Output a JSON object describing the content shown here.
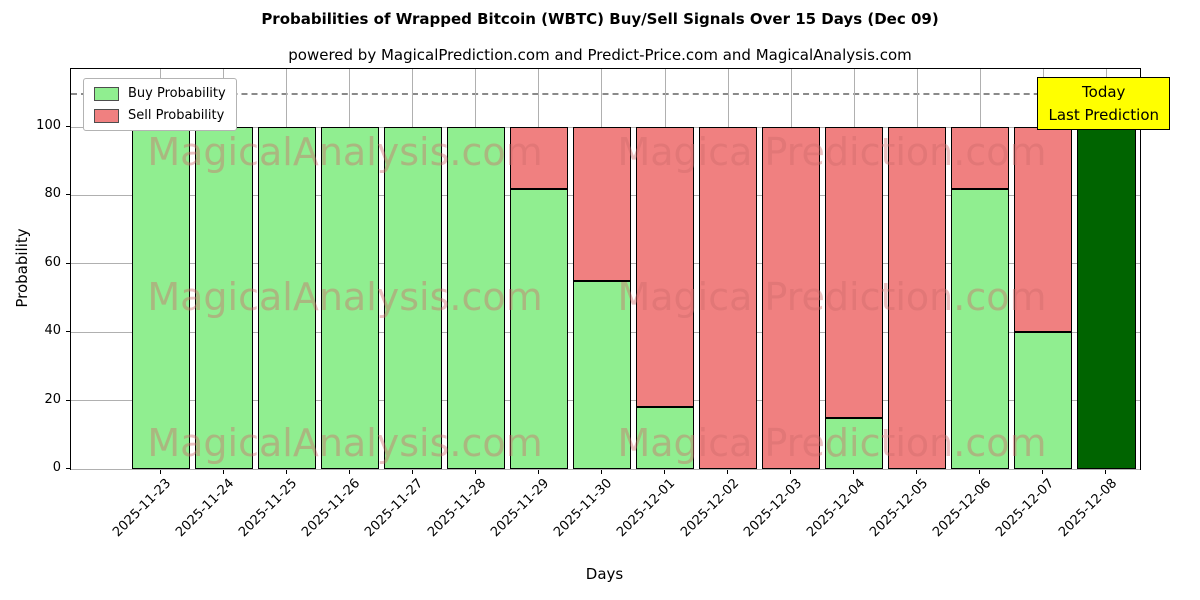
{
  "chart_data": {
    "type": "bar",
    "stacked": true,
    "title": "Probabilities of Wrapped Bitcoin (WBTC) Buy/Sell Signals Over 15 Days (Dec 09)",
    "subtitle": "powered by MagicalPrediction.com and Predict-Price.com and MagicalAnalysis.com",
    "xlabel": "Days",
    "ylabel": "Probability",
    "categories": [
      "2025-11-23",
      "2025-11-24",
      "2025-11-25",
      "2025-11-26",
      "2025-11-27",
      "2025-11-28",
      "2025-11-29",
      "2025-11-30",
      "2025-12-01",
      "2025-12-02",
      "2025-12-03",
      "2025-12-04",
      "2025-12-05",
      "2025-12-06",
      "2025-12-07",
      "2025-12-08"
    ],
    "series": [
      {
        "name": "Buy Probability",
        "color": "#90EE90",
        "values": [
          100,
          100,
          100,
          100,
          100,
          100,
          82,
          55,
          18,
          0,
          0,
          15,
          0,
          82,
          40,
          100
        ]
      },
      {
        "name": "Sell Probability",
        "color": "#F08080",
        "values": [
          0,
          0,
          0,
          0,
          0,
          0,
          18,
          45,
          82,
          100,
          100,
          85,
          100,
          18,
          60,
          0
        ]
      }
    ],
    "today_bar": {
      "index": 15,
      "color": "#006400"
    },
    "yticks": [
      0,
      20,
      40,
      60,
      80,
      100
    ],
    "ylim": [
      0,
      117
    ],
    "dashed_line_y": 110,
    "grid": true,
    "legend_position": "upper-left",
    "annotation": {
      "line1": "Today",
      "line2": "Last Prediction",
      "bg": "#FFFF00"
    },
    "watermarks": [
      {
        "text": "MagicalAnalysis.com"
      },
      {
        "text": "Magica Prediction.com"
      }
    ]
  }
}
